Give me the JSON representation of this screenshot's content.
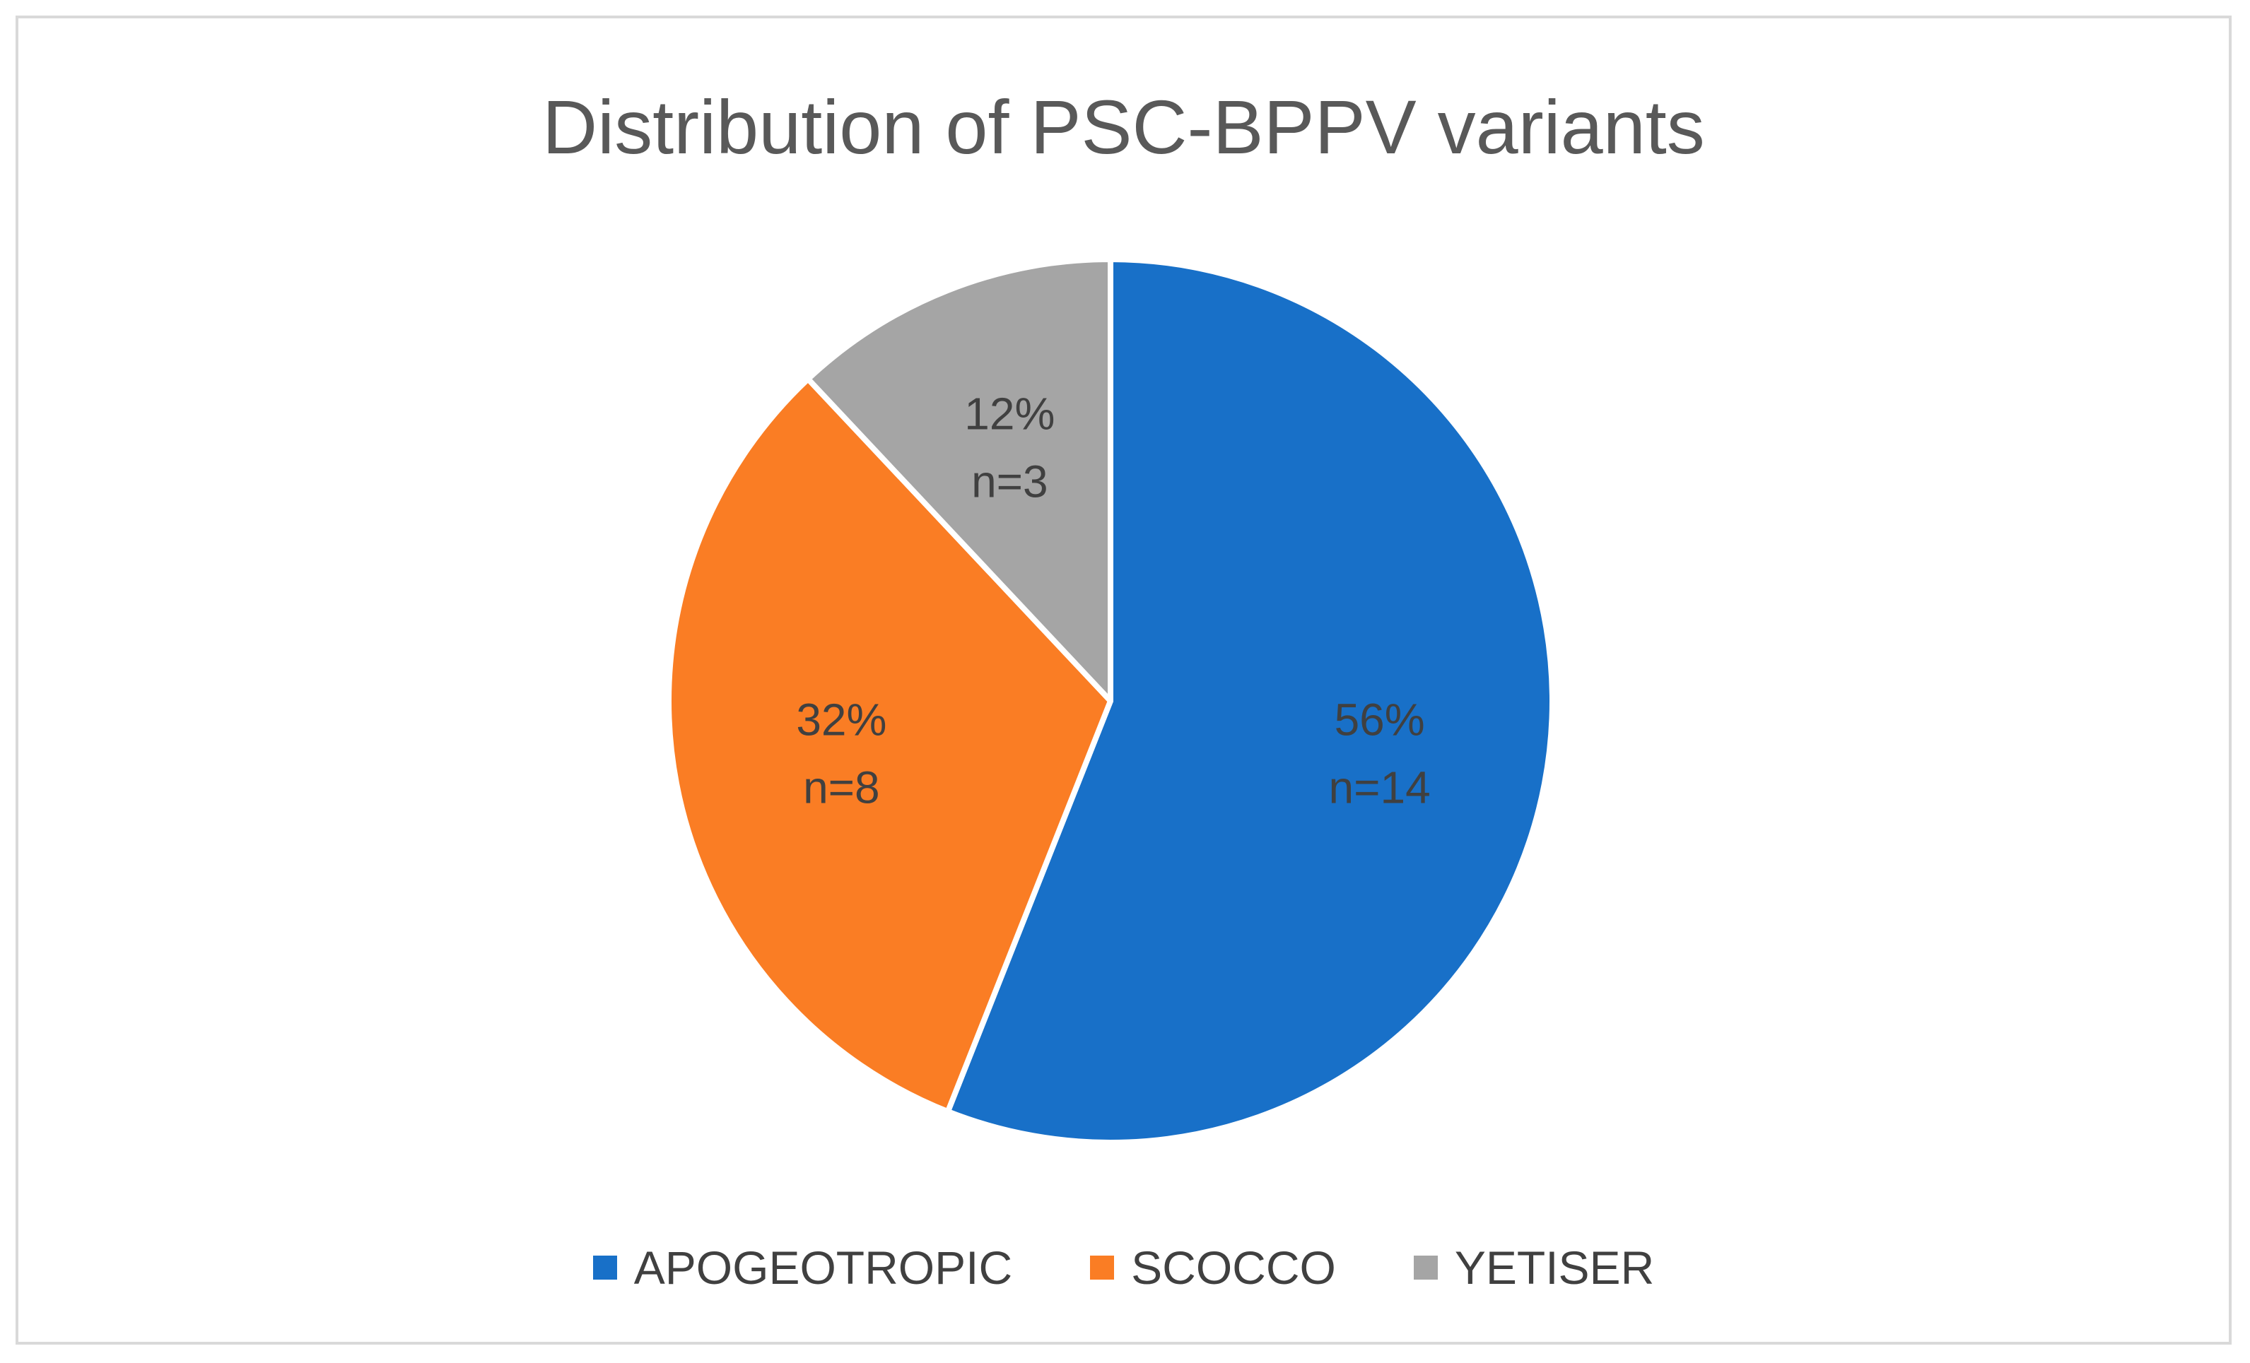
{
  "chart_data": {
    "type": "pie",
    "title": "Distribution of PSC-BPPV variants",
    "legend_position": "bottom",
    "slices": [
      {
        "name": "APOGEOTROPIC",
        "percent": 56,
        "count": 14,
        "percent_label": "56%",
        "count_label": "n=14",
        "color": "#1870C8"
      },
      {
        "name": "SCOCCO",
        "percent": 32,
        "count": 8,
        "percent_label": "32%",
        "count_label": "n=8",
        "color": "#FA7D24"
      },
      {
        "name": "YETISER",
        "percent": 12,
        "count": 3,
        "percent_label": "12%",
        "count_label": "n=3",
        "color": "#A5A5A5"
      }
    ]
  }
}
